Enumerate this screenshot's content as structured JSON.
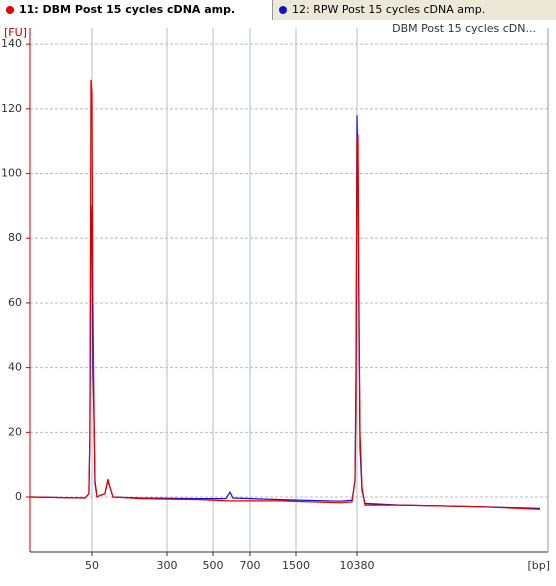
{
  "tabs": [
    {
      "label": "11: DBM Post 15 cycles cDNA amp.",
      "color": "#e00000"
    },
    {
      "label": "12: RPW Post 15 cycles cDNA amp.",
      "color": "#1010d0"
    }
  ],
  "chart_data": {
    "type": "line",
    "legend": "DBM Post 15 cycles cDN...",
    "ylabel": "[FU]",
    "xlabel": "[bp]",
    "ylim": [
      -17,
      145
    ],
    "yticks": [
      0,
      20,
      40,
      60,
      80,
      100,
      120,
      140
    ],
    "xlim": [
      20,
      20000
    ],
    "xticks": [
      50,
      300,
      500,
      700,
      1500,
      10380
    ],
    "grid": true,
    "series": [
      {
        "name": "DBM Post 15 cycles cDNA amp.",
        "color": "#e00000",
        "x": [
          20,
          46.6,
          48.5,
          49,
          49.5,
          50,
          53,
          57,
          60,
          67,
          77,
          93,
          103,
          110,
          120,
          210,
          443,
          581,
          1222,
          7906,
          9653,
          10090,
          10235,
          10380,
          10430,
          10481,
          10531,
          10632,
          10783,
          12547,
          16579,
          19603
        ],
        "values": [
          0,
          -0.3,
          1,
          20,
          129,
          125,
          60,
          25,
          5,
          0,
          0.5,
          1,
          5.5,
          3,
          0,
          -0.5,
          -0.8,
          -1.2,
          -1.2,
          -1.8,
          -1.5,
          5,
          30,
          110,
          112,
          60,
          20,
          3,
          -2.5,
          -2.5,
          -3,
          -3.8
        ]
      },
      {
        "name": "RPW Post 15 cycles cDNA amp.",
        "color": "#1010d0",
        "x": [
          20,
          46.6,
          48.5,
          49,
          49.5,
          50,
          53,
          57,
          60,
          67,
          77,
          93,
          103,
          110,
          120,
          210,
          443,
          570,
          592,
          608,
          1222,
          7906,
          9653,
          10090,
          10235,
          10380,
          10430,
          10481,
          10531,
          10632,
          10783,
          12547,
          16579,
          19603
        ],
        "values": [
          0,
          -0.3,
          1,
          18,
          90,
          80,
          40,
          22,
          4,
          0,
          0.5,
          1,
          5,
          3,
          0,
          -0.3,
          -0.5,
          -0.5,
          1.5,
          -0.3,
          -0.8,
          -1.3,
          -1,
          5,
          40,
          118,
          100,
          50,
          15,
          2,
          -2,
          -2.5,
          -3,
          -3.5
        ]
      }
    ]
  }
}
